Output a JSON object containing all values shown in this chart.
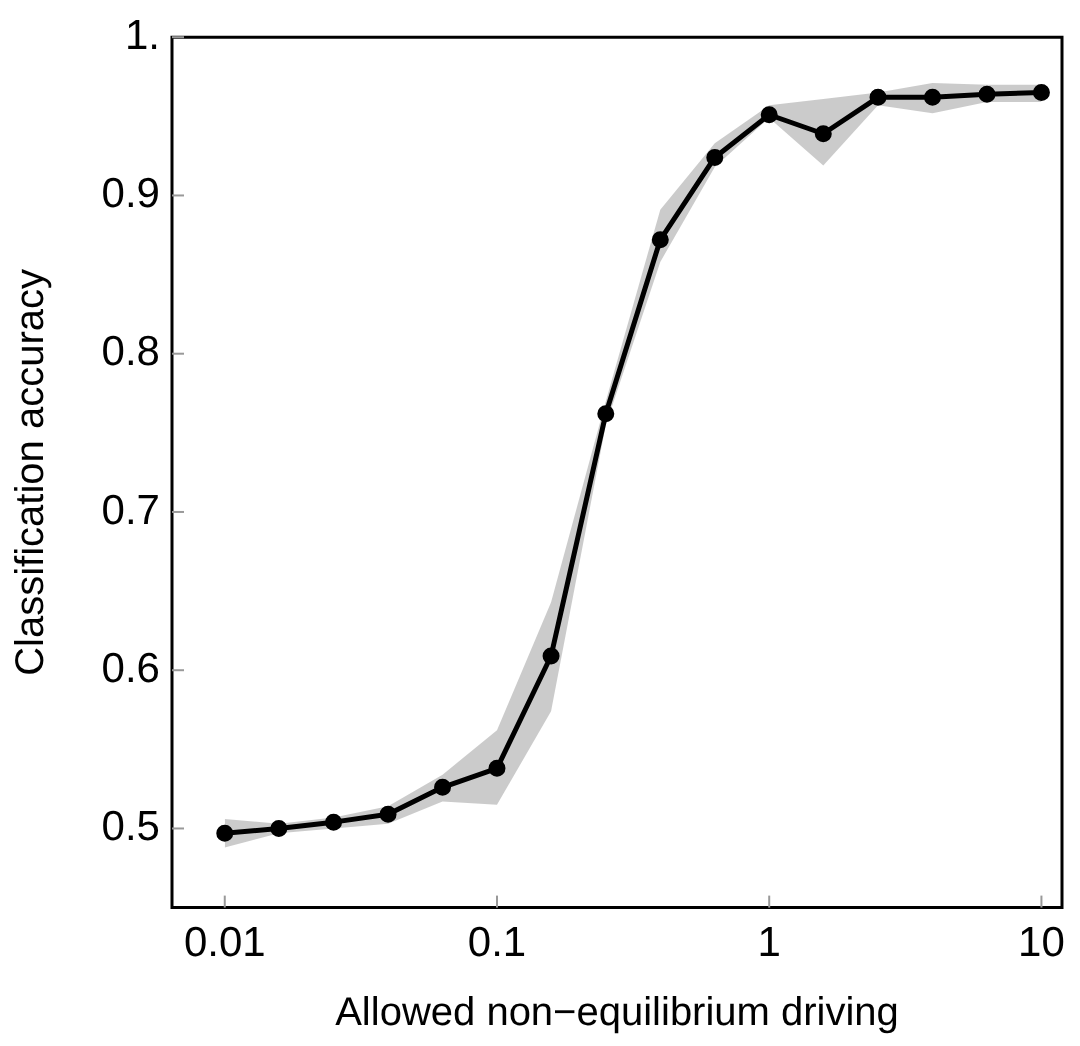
{
  "chart_data": {
    "type": "line",
    "xlabel": "Allowed non−equilibrium driving",
    "ylabel": "Classification accuracy",
    "log": "x",
    "xlim": [
      0.0064,
      11.9
    ],
    "xticks": [
      0.01,
      0.1,
      1,
      10
    ],
    "ylim": [
      0.45,
      1
    ],
    "yticks": [
      0.5,
      0.6,
      0.7,
      0.8,
      0.9,
      {
        "value": 1,
        "label": "1."
      }
    ],
    "grid": false,
    "legend": false,
    "marker": "circle",
    "line_style": "solid",
    "x": [
      0.01,
      0.0158,
      0.0251,
      0.0398,
      0.0631,
      0.1,
      0.158,
      0.251,
      0.398,
      0.631,
      1,
      1.58,
      2.51,
      3.98,
      6.31,
      10
    ],
    "series": [
      {
        "color": "#000000",
        "values": [
          0.497,
          0.5,
          0.504,
          0.509,
          0.526,
          0.538,
          0.609,
          0.762,
          0.872,
          0.924,
          0.951,
          0.939,
          0.962,
          0.962,
          0.964,
          0.965
        ],
        "lower": [
          0.488,
          0.497,
          0.5,
          0.503,
          0.517,
          0.515,
          0.574,
          0.755,
          0.858,
          0.918,
          0.949,
          0.919,
          0.957,
          0.952,
          0.959,
          0.959
        ],
        "upper": [
          0.506,
          0.503,
          0.507,
          0.514,
          0.534,
          0.562,
          0.643,
          0.77,
          0.891,
          0.933,
          0.957,
          0.961,
          0.965,
          0.971,
          0.97,
          0.97
        ]
      }
    ]
  }
}
